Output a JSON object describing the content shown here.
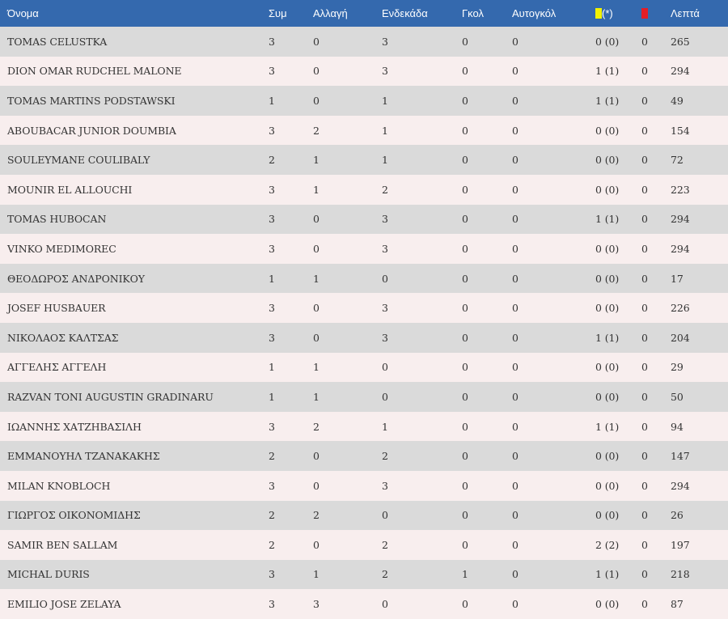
{
  "colors": {
    "header_bg": "#3469ae",
    "row_odd": "#dadada",
    "row_even": "#f8eeee",
    "yellow_card": "#f2f200",
    "red_card": "#e41e26"
  },
  "table": {
    "headers": {
      "name": "Όνομα",
      "appearances": "Συμ",
      "substitute": "Αλλαγή",
      "starting": "Ενδεκάδα",
      "goals": "Γκολ",
      "own_goals": "Αυτογκόλ",
      "yellow_icon": "yellow-card-icon",
      "yellow_suffix": "(*)",
      "red_icon": "red-card-icon",
      "minutes": "Λεπτά"
    },
    "rows": [
      {
        "name": "TOMAS CELUSTKA",
        "apps": "3",
        "sub": "0",
        "start": "3",
        "goals": "0",
        "own": "0",
        "yellow": "0 (0)",
        "red": "0",
        "minutes": "265"
      },
      {
        "name": "DION OMAR RUDCHEL MALONE",
        "apps": "3",
        "sub": "0",
        "start": "3",
        "goals": "0",
        "own": "0",
        "yellow": "1 (1)",
        "red": "0",
        "minutes": "294"
      },
      {
        "name": "TOMAS MARTINS PODSTAWSKI",
        "apps": "1",
        "sub": "0",
        "start": "1",
        "goals": "0",
        "own": "0",
        "yellow": "1 (1)",
        "red": "0",
        "minutes": "49"
      },
      {
        "name": "ABOUBACAR JUNIOR DOUMBIA",
        "apps": "3",
        "sub": "2",
        "start": "1",
        "goals": "0",
        "own": "0",
        "yellow": "0 (0)",
        "red": "0",
        "minutes": "154"
      },
      {
        "name": "SOULEYMANE COULIBALY",
        "apps": "2",
        "sub": "1",
        "start": "1",
        "goals": "0",
        "own": "0",
        "yellow": "0 (0)",
        "red": "0",
        "minutes": "72"
      },
      {
        "name": "MOUNIR EL ALLOUCHI",
        "apps": "3",
        "sub": "1",
        "start": "2",
        "goals": "0",
        "own": "0",
        "yellow": "0 (0)",
        "red": "0",
        "minutes": "223"
      },
      {
        "name": "TOMAS HUBOCAN",
        "apps": "3",
        "sub": "0",
        "start": "3",
        "goals": "0",
        "own": "0",
        "yellow": "1 (1)",
        "red": "0",
        "minutes": "294"
      },
      {
        "name": "VINKO MEDIMOREC",
        "apps": "3",
        "sub": "0",
        "start": "3",
        "goals": "0",
        "own": "0",
        "yellow": "0 (0)",
        "red": "0",
        "minutes": "294"
      },
      {
        "name": "ΘΕΟΔΩΡΟΣ ΑΝΔΡΟΝΙΚΟΥ",
        "apps": "1",
        "sub": "1",
        "start": "0",
        "goals": "0",
        "own": "0",
        "yellow": "0 (0)",
        "red": "0",
        "minutes": "17"
      },
      {
        "name": "JOSEF HUSBAUER",
        "apps": "3",
        "sub": "0",
        "start": "3",
        "goals": "0",
        "own": "0",
        "yellow": "0 (0)",
        "red": "0",
        "minutes": "226"
      },
      {
        "name": "ΝΙΚΟΛΑΟΣ ΚΑΛΤΣΑΣ",
        "apps": "3",
        "sub": "0",
        "start": "3",
        "goals": "0",
        "own": "0",
        "yellow": "1 (1)",
        "red": "0",
        "minutes": "204"
      },
      {
        "name": "ΑΓΓΕΛΗΣ ΑΓΓΕΛΗ",
        "apps": "1",
        "sub": "1",
        "start": "0",
        "goals": "0",
        "own": "0",
        "yellow": "0 (0)",
        "red": "0",
        "minutes": "29"
      },
      {
        "name": "RAZVAN TONI AUGUSTIN GRADINARU",
        "apps": "1",
        "sub": "1",
        "start": "0",
        "goals": "0",
        "own": "0",
        "yellow": "0 (0)",
        "red": "0",
        "minutes": "50"
      },
      {
        "name": "ΙΩΑΝΝΗΣ ΧΑΤΖΗΒΑΣΙΛΗ",
        "apps": "3",
        "sub": "2",
        "start": "1",
        "goals": "0",
        "own": "0",
        "yellow": "1 (1)",
        "red": "0",
        "minutes": "94"
      },
      {
        "name": "ΕΜΜΑΝΟΥΗΛ ΤΖΑΝΑΚΑΚΗΣ",
        "apps": "2",
        "sub": "0",
        "start": "2",
        "goals": "0",
        "own": "0",
        "yellow": "0 (0)",
        "red": "0",
        "minutes": "147"
      },
      {
        "name": "MILAN KNOBLOCH",
        "apps": "3",
        "sub": "0",
        "start": "3",
        "goals": "0",
        "own": "0",
        "yellow": "0 (0)",
        "red": "0",
        "minutes": "294"
      },
      {
        "name": "ΓΙΩΡΓΟΣ ΟΙΚΟΝΟΜΙΔΗΣ",
        "apps": "2",
        "sub": "2",
        "start": "0",
        "goals": "0",
        "own": "0",
        "yellow": "0 (0)",
        "red": "0",
        "minutes": "26"
      },
      {
        "name": "SAMIR BEN SALLAM",
        "apps": "2",
        "sub": "0",
        "start": "2",
        "goals": "0",
        "own": "0",
        "yellow": "2 (2)",
        "red": "0",
        "minutes": "197"
      },
      {
        "name": "MICHAL DURIS",
        "apps": "3",
        "sub": "1",
        "start": "2",
        "goals": "1",
        "own": "0",
        "yellow": "1 (1)",
        "red": "0",
        "minutes": "218"
      },
      {
        "name": "EMILIO JOSE ZELAYA",
        "apps": "3",
        "sub": "3",
        "start": "0",
        "goals": "0",
        "own": "0",
        "yellow": "0 (0)",
        "red": "0",
        "minutes": "87"
      }
    ]
  }
}
